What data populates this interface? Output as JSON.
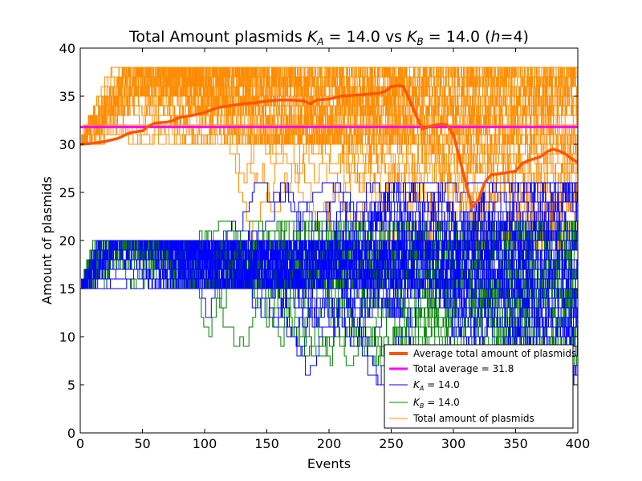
{
  "chart_data": {
    "type": "line",
    "title": "Total Amount plasmids K_A = 14.0 vs K_B = 14.0 (h=4)",
    "title_parts": {
      "prefix": "Total Amount plasmids ",
      "ka_symbol": "K",
      "ka_sub": "A",
      "ka_value": " = 14.0 vs ",
      "kb_symbol": "K",
      "kb_sub": "B",
      "kb_value": " = 14.0 (",
      "h_symbol": "h",
      "suffix": "=4)"
    },
    "xlabel": "Events",
    "ylabel": "Amount of plasmids",
    "xlim": [
      0,
      400
    ],
    "ylim": [
      0,
      40
    ],
    "xticks": [
      "0",
      "50",
      "100",
      "150",
      "200",
      "250",
      "300",
      "350",
      "400"
    ],
    "yticks": [
      "0",
      "5",
      "10",
      "15",
      "20",
      "25",
      "30",
      "35",
      "40"
    ],
    "grid": false,
    "legend_position": "lower-right",
    "colors": {
      "average": "#ff5500",
      "total_average": "#ff00ff",
      "ka": "#0000ff",
      "kb": "#008000",
      "total": "#ff8c00"
    },
    "legend": {
      "average_label": "Average total amount of plasmids",
      "total_average_label": "Total average = 31.8",
      "ka_symbol": "K",
      "ka_sub": "A",
      "ka_value": " = 14.0",
      "kb_symbol": "K",
      "kb_sub": "B",
      "kb_value": " = 14.0",
      "total_label": "Total amount of plasmids"
    },
    "total_average": 31.8,
    "average_series": {
      "name": "Average total amount of plasmids",
      "x": [
        0,
        10,
        20,
        30,
        40,
        50,
        55,
        60,
        70,
        75,
        80,
        90,
        100,
        110,
        115,
        120,
        130,
        140,
        150,
        160,
        170,
        180,
        185,
        190,
        200,
        210,
        220,
        230,
        240,
        245,
        250,
        255,
        260,
        265,
        270,
        275,
        280,
        285,
        290,
        295,
        300,
        305,
        310,
        315,
        320,
        325,
        330,
        340,
        350,
        355,
        360,
        365,
        370,
        375,
        380,
        385,
        390,
        395,
        400
      ],
      "y": [
        30.0,
        30.1,
        30.3,
        30.6,
        31.2,
        31.4,
        31.9,
        32.2,
        32.3,
        32.5,
        32.8,
        33.0,
        33.3,
        33.8,
        33.9,
        34.0,
        34.2,
        34.3,
        34.5,
        34.6,
        34.6,
        34.5,
        34.2,
        34.6,
        34.7,
        35.0,
        35.1,
        35.2,
        35.3,
        35.5,
        36.0,
        36.1,
        36.0,
        34.5,
        33.0,
        31.6,
        31.8,
        32.0,
        32.1,
        32.0,
        31.0,
        28.5,
        26.0,
        23.4,
        24.2,
        26.0,
        26.8,
        27.0,
        27.2,
        28.0,
        28.3,
        28.5,
        28.7,
        29.2,
        29.5,
        29.3,
        29.0,
        28.5,
        28.1
      ]
    },
    "ensemble": {
      "ka_start": 15,
      "kb_start": 15,
      "total_start": 30,
      "total_max": 39,
      "ka_min": 5,
      "kb_min": 7,
      "total_low_band": [
        19,
        24
      ]
    }
  }
}
